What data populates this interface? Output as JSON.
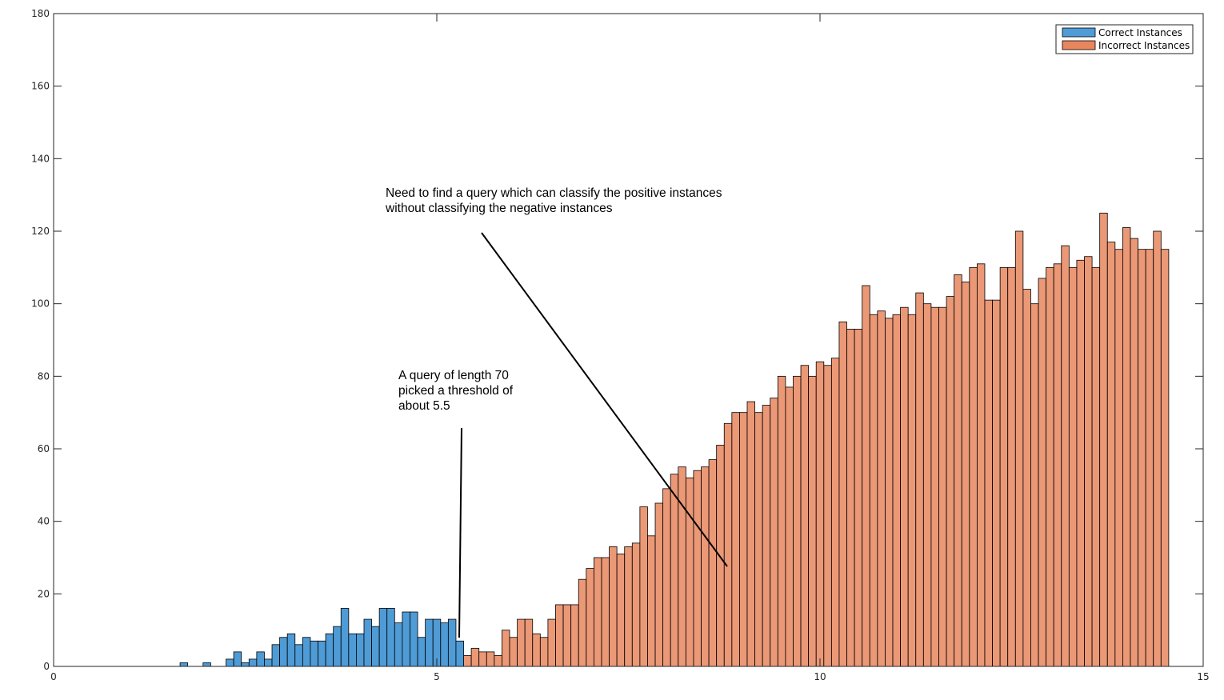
{
  "chart_data": {
    "type": "bar",
    "title": "",
    "xlabel": "",
    "ylabel": "",
    "xlim": [
      0,
      15
    ],
    "ylim": [
      0,
      180
    ],
    "x_ticks": [
      "0",
      "5",
      "10",
      "15"
    ],
    "y_ticks": [
      "0",
      "20",
      "40",
      "60",
      "80",
      "100",
      "120",
      "140",
      "160",
      "180"
    ],
    "grid": false,
    "legend_position": "top-right",
    "bin_width": 0.1,
    "series": [
      {
        "name": "Correct Instances",
        "color": "#4e9bd6",
        "x": [
          1.7,
          2.0,
          2.3,
          2.4,
          2.5,
          2.6,
          2.7,
          2.8,
          2.9,
          3.0,
          3.1,
          3.2,
          3.3,
          3.4,
          3.5,
          3.6,
          3.7,
          3.8,
          3.9,
          4.0,
          4.1,
          4.2,
          4.3,
          4.4,
          4.5,
          4.6,
          4.7,
          4.8,
          4.9,
          5.0,
          5.1,
          5.2,
          5.3
        ],
        "values": [
          1,
          1,
          2,
          4,
          1,
          2,
          4,
          2,
          6,
          8,
          9,
          6,
          8,
          7,
          7,
          9,
          11,
          16,
          9,
          9,
          13,
          11,
          16,
          16,
          12,
          15,
          15,
          8,
          13,
          13,
          12,
          13,
          7
        ]
      },
      {
        "name": "Incorrect Instances",
        "color": "#e8865e",
        "x": [
          2.6,
          2.7,
          2.8,
          2.9,
          3.0,
          3.1,
          3.2,
          3.3,
          3.4,
          3.5,
          3.6,
          3.7,
          3.8,
          3.9,
          4.0,
          4.1,
          4.2,
          4.3,
          4.4,
          4.5,
          4.6,
          4.7,
          4.8,
          4.9,
          5.0,
          5.1,
          5.2,
          5.3,
          5.4,
          5.5,
          5.6,
          5.7,
          5.8,
          5.9,
          6.0,
          6.1,
          6.2,
          6.3,
          6.4,
          6.5,
          6.6,
          6.7,
          6.8,
          6.9,
          7.0,
          7.1,
          7.2,
          7.3,
          7.4,
          7.5,
          7.6,
          7.7,
          7.8,
          7.9,
          8.0,
          8.1,
          8.2,
          8.3,
          8.4,
          8.5,
          8.6,
          8.7,
          8.8,
          8.9,
          9.0,
          9.1,
          9.2,
          9.3,
          9.4,
          9.5,
          9.6,
          9.7,
          9.8,
          9.9,
          10.0,
          10.1,
          10.2,
          10.3,
          10.4,
          10.5,
          10.6,
          10.7,
          10.8,
          10.9,
          11.0,
          11.1,
          11.2,
          11.3,
          11.4,
          11.5,
          11.6,
          11.7,
          11.8,
          11.9,
          12.0,
          12.1,
          12.2,
          12.3,
          12.4,
          12.5,
          12.6,
          12.7,
          12.8,
          12.9,
          13.0,
          13.1,
          13.2,
          13.3,
          13.4,
          13.5,
          13.6,
          13.7,
          13.8,
          13.9,
          14.0,
          14.1,
          14.2,
          14.3,
          14.4,
          14.5
        ],
        "values": [
          1,
          2,
          1,
          1,
          2,
          1,
          5,
          2,
          3,
          2,
          3,
          1,
          2,
          2,
          3,
          2,
          1,
          2,
          3,
          2,
          3,
          1,
          2,
          4,
          3,
          2,
          2,
          3,
          3,
          5,
          4,
          4,
          3,
          10,
          8,
          13,
          13,
          9,
          8,
          13,
          17,
          17,
          17,
          24,
          27,
          30,
          30,
          33,
          31,
          33,
          34,
          44,
          36,
          45,
          49,
          53,
          55,
          52,
          54,
          55,
          57,
          61,
          67,
          70,
          70,
          73,
          70,
          72,
          74,
          80,
          77,
          80,
          83,
          80,
          84,
          83,
          85,
          95,
          93,
          93,
          105,
          97,
          98,
          96,
          97,
          99,
          97,
          103,
          100,
          99,
          99,
          102,
          108,
          106,
          110,
          111,
          101,
          101,
          110,
          110,
          120,
          104,
          100,
          107,
          110,
          111,
          116,
          110,
          112,
          113,
          110,
          125,
          117,
          115,
          121,
          118,
          115,
          115,
          120,
          115
        ],
        "values_note": ""
      }
    ],
    "annotations": [
      {
        "lines": [
          "Need to find a query which can classify the positive instances",
          "without classifying the negative instances"
        ],
        "arrow": true
      },
      {
        "lines": [
          "A query of length 70",
          "picked a threshold of",
          "about 5.5"
        ],
        "arrow": true
      }
    ]
  }
}
